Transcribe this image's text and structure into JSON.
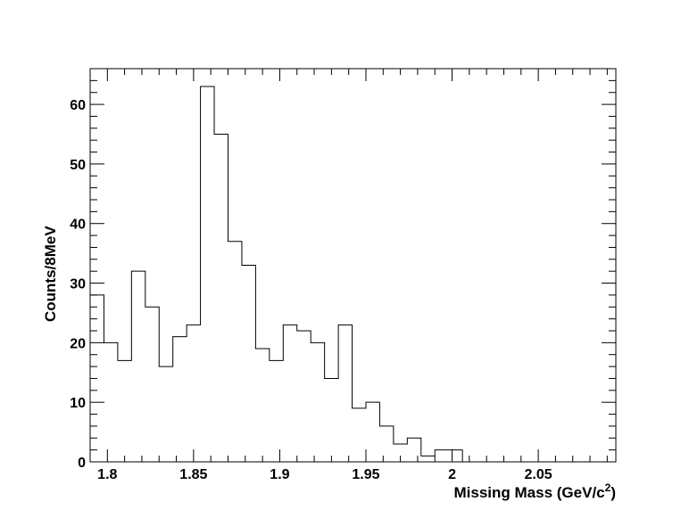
{
  "chart_data": {
    "type": "histogram",
    "xlabel": "Missing Mass (GeV/c",
    "xlabel_sup": "2",
    "xlabel_close": ")",
    "ylabel": "Counts/8MeV",
    "xlim": [
      1.79,
      2.095
    ],
    "ylim": [
      0,
      66
    ],
    "bin_width": 0.008,
    "bin_start": 1.79,
    "values": [
      28,
      20,
      17,
      32,
      26,
      16,
      21,
      23,
      63,
      55,
      37,
      33,
      19,
      17,
      23,
      22,
      20,
      14,
      23,
      9,
      10,
      6,
      3,
      4,
      1,
      2,
      2,
      0,
      0,
      0,
      0,
      0,
      0,
      0,
      0,
      0,
      0,
      0
    ],
    "x_ticks": [
      {
        "value": 1.8,
        "label": "1.8"
      },
      {
        "value": 1.85,
        "label": "1.85"
      },
      {
        "value": 1.9,
        "label": "1.9"
      },
      {
        "value": 1.95,
        "label": "1.95"
      },
      {
        "value": 2.0,
        "label": "2"
      },
      {
        "value": 2.05,
        "label": "2.05"
      }
    ],
    "y_ticks": [
      {
        "value": 0,
        "label": "0"
      },
      {
        "value": 10,
        "label": "10"
      },
      {
        "value": 20,
        "label": "20"
      },
      {
        "value": 30,
        "label": "30"
      },
      {
        "value": 40,
        "label": "40"
      },
      {
        "value": 50,
        "label": "50"
      },
      {
        "value": 60,
        "label": "60"
      }
    ],
    "grid": false,
    "legend": "none",
    "line_color": "#000000"
  }
}
